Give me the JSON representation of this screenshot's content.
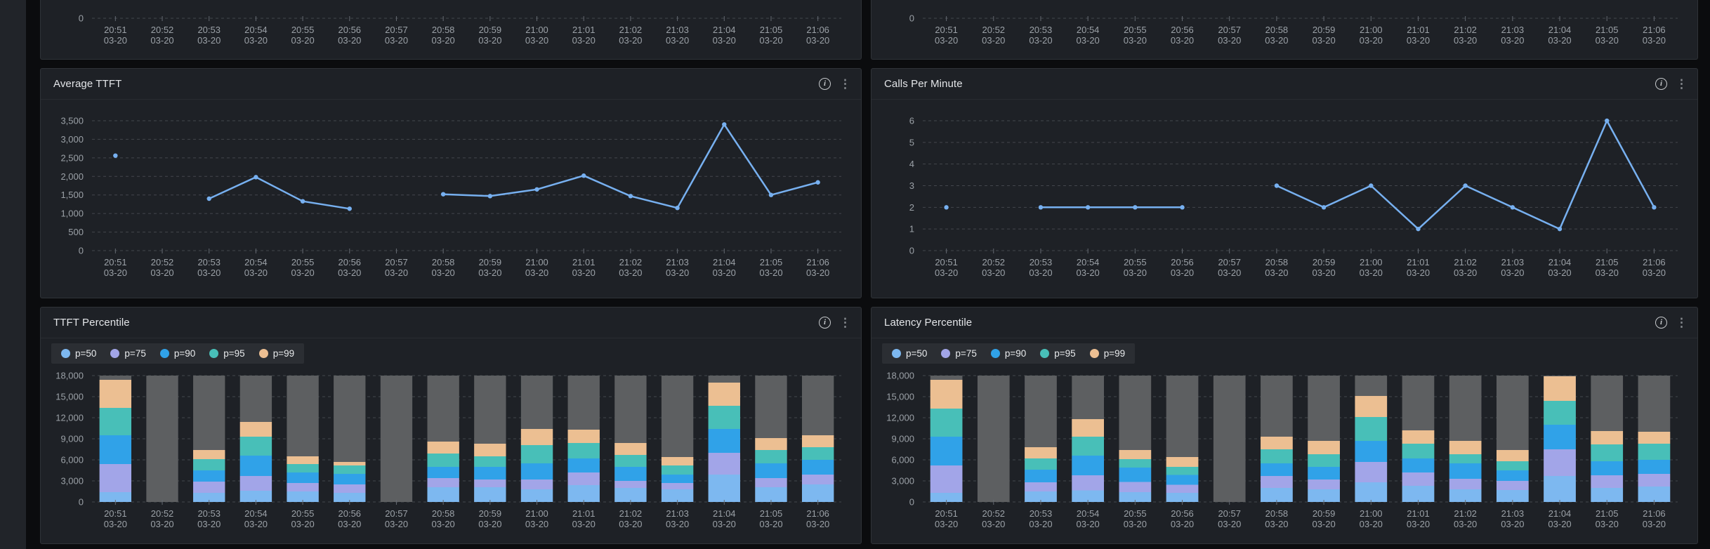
{
  "colors": {
    "page_bg": "#0b0c0e",
    "panel_bg": "#1e2126",
    "panel_border": "#2f3338",
    "gridline": "#43464c",
    "axis_text": "#9ba1a7",
    "title_text": "#e3e5e8",
    "line_series": "#77b0f0",
    "bar_backdrop": "#5d5f61",
    "p50": "#7db8f0",
    "p75": "#a2a5e8",
    "p90": "#30a2e8",
    "p95": "#48bfb8",
    "p99": "#ecbf92"
  },
  "panels": [
    {
      "title": ""
    },
    {
      "title": ""
    },
    {
      "title": "Average TTFT"
    },
    {
      "title": "Calls Per Minute"
    },
    {
      "title": "TTFT Percentile"
    },
    {
      "title": "Latency Percentile"
    }
  ],
  "header_icons": {
    "info": "i",
    "menu": "⋮"
  },
  "chart_data": [
    {
      "type": "line",
      "axis_only": true,
      "title": "",
      "x": [
        "20:51",
        "20:52",
        "20:53",
        "20:54",
        "20:55",
        "20:56",
        "20:57",
        "20:58",
        "20:59",
        "21:00",
        "21:01",
        "21:02",
        "21:03",
        "21:04",
        "21:05",
        "21:06"
      ],
      "x_date": "03-20",
      "ylim": [
        0,
        1
      ],
      "yticks": [
        0
      ],
      "ytick_labels": [
        "0"
      ],
      "series": [],
      "grid": true,
      "note_layout": "panel clipped at top of viewport; only zero line and x axis visible"
    },
    {
      "type": "line",
      "axis_only": true,
      "title": "",
      "x": [
        "20:51",
        "20:52",
        "20:53",
        "20:54",
        "20:55",
        "20:56",
        "20:57",
        "20:58",
        "20:59",
        "21:00",
        "21:01",
        "21:02",
        "21:03",
        "21:04",
        "21:05",
        "21:06"
      ],
      "x_date": "03-20",
      "ylim": [
        0,
        1
      ],
      "yticks": [
        0
      ],
      "ytick_labels": [
        "0"
      ],
      "series": [],
      "grid": true,
      "note_layout": "panel clipped at top of viewport; only zero line and x axis visible"
    },
    {
      "type": "line",
      "title": "Average TTFT",
      "x": [
        "20:51",
        "20:52",
        "20:53",
        "20:54",
        "20:55",
        "20:56",
        "20:57",
        "20:58",
        "20:59",
        "21:00",
        "21:01",
        "21:02",
        "21:03",
        "21:04",
        "21:05",
        "21:06"
      ],
      "x_date": "03-20",
      "ylim": [
        0,
        3500
      ],
      "yticks": [
        0,
        500,
        1000,
        1500,
        2000,
        2500,
        3000,
        3500
      ],
      "ytick_labels": [
        "0",
        "500",
        "1,000",
        "1,500",
        "2,000",
        "2,500",
        "3,000",
        "3,500"
      ],
      "line_color": "#77b0f0",
      "values": [
        2560,
        null,
        1400,
        1980,
        1330,
        1130,
        null,
        1520,
        1470,
        1650,
        2020,
        1470,
        1150,
        3400,
        1500,
        1840
      ],
      "grid": true,
      "legend_position": "none"
    },
    {
      "type": "line",
      "title": "Calls Per Minute",
      "x": [
        "20:51",
        "20:52",
        "20:53",
        "20:54",
        "20:55",
        "20:56",
        "20:57",
        "20:58",
        "20:59",
        "21:00",
        "21:01",
        "21:02",
        "21:03",
        "21:04",
        "21:05",
        "21:06"
      ],
      "x_date": "03-20",
      "ylim": [
        0,
        6
      ],
      "yticks": [
        0,
        1,
        2,
        3,
        4,
        5,
        6
      ],
      "ytick_labels": [
        "0",
        "1",
        "2",
        "3",
        "4",
        "5",
        "6"
      ],
      "line_color": "#77b0f0",
      "values": [
        2,
        null,
        2,
        2,
        2,
        2,
        null,
        3,
        2,
        3,
        1,
        3,
        2,
        1,
        6,
        2
      ],
      "grid": true,
      "legend_position": "none"
    },
    {
      "type": "stacked_bar",
      "title": "TTFT Percentile",
      "x": [
        "20:51",
        "20:52",
        "20:53",
        "20:54",
        "20:55",
        "20:56",
        "20:57",
        "20:58",
        "20:59",
        "21:00",
        "21:01",
        "21:02",
        "21:03",
        "21:04",
        "21:05",
        "21:06"
      ],
      "x_date": "03-20",
      "ylim": [
        0,
        18000
      ],
      "yticks": [
        0,
        3000,
        6000,
        9000,
        12000,
        15000,
        18000
      ],
      "ytick_labels": [
        "0",
        "3,000",
        "6,000",
        "9,000",
        "12,000",
        "15,000",
        "18,000"
      ],
      "backdrop_max": 18000,
      "backdrop_color": "#5d5f61",
      "stack_mode": "values_are_cumulative_tops",
      "legend_position": "top-left",
      "legend": [
        {
          "label": "p=50",
          "color": "#7db8f0"
        },
        {
          "label": "p=75",
          "color": "#a2a5e8"
        },
        {
          "label": "p=90",
          "color": "#30a2e8"
        },
        {
          "label": "p=95",
          "color": "#48bfb8"
        },
        {
          "label": "p=99",
          "color": "#ecbf92"
        }
      ],
      "series": [
        {
          "name": "p=50",
          "color": "#7db8f0",
          "values": [
            1400,
            null,
            1300,
            1600,
            1500,
            1300,
            null,
            2100,
            2100,
            1800,
            2400,
            2000,
            1800,
            3900,
            2100,
            2500
          ]
        },
        {
          "name": "p=75",
          "color": "#a2a5e8",
          "values": [
            5400,
            null,
            2900,
            3700,
            2700,
            2500,
            null,
            3400,
            3200,
            3200,
            4200,
            3000,
            2700,
            7000,
            3400,
            3900
          ]
        },
        {
          "name": "p=90",
          "color": "#30a2e8",
          "values": [
            9500,
            null,
            4500,
            6600,
            4200,
            4000,
            null,
            5000,
            5000,
            5500,
            6200,
            5000,
            3900,
            10400,
            5500,
            6000
          ]
        },
        {
          "name": "p=95",
          "color": "#48bfb8",
          "values": [
            13400,
            null,
            6100,
            9300,
            5400,
            5200,
            null,
            6900,
            6500,
            8100,
            8400,
            6700,
            5200,
            13700,
            7400,
            7800
          ]
        },
        {
          "name": "p=99",
          "color": "#ecbf92",
          "values": [
            17400,
            null,
            7400,
            11400,
            6500,
            5700,
            null,
            8600,
            8300,
            10400,
            10300,
            8400,
            6400,
            17000,
            9100,
            9500
          ]
        }
      ],
      "grid": true
    },
    {
      "type": "stacked_bar",
      "title": "Latency Percentile",
      "x": [
        "20:51",
        "20:52",
        "20:53",
        "20:54",
        "20:55",
        "20:56",
        "20:57",
        "20:58",
        "20:59",
        "21:00",
        "21:01",
        "21:02",
        "21:03",
        "21:04",
        "21:05",
        "21:06"
      ],
      "x_date": "03-20",
      "ylim": [
        0,
        18000
      ],
      "yticks": [
        0,
        3000,
        6000,
        9000,
        12000,
        15000,
        18000
      ],
      "ytick_labels": [
        "0",
        "3,000",
        "6,000",
        "9,000",
        "12,000",
        "15,000",
        "18,000"
      ],
      "backdrop_max": 18000,
      "backdrop_color": "#5d5f61",
      "stack_mode": "values_are_cumulative_tops",
      "legend_position": "top-left",
      "legend": [
        {
          "label": "p=50",
          "color": "#7db8f0"
        },
        {
          "label": "p=75",
          "color": "#a2a5e8"
        },
        {
          "label": "p=90",
          "color": "#30a2e8"
        },
        {
          "label": "p=95",
          "color": "#48bfb8"
        },
        {
          "label": "p=99",
          "color": "#ecbf92"
        }
      ],
      "series": [
        {
          "name": "p=50",
          "color": "#7db8f0",
          "values": [
            1300,
            null,
            1500,
            1650,
            1400,
            1300,
            null,
            2000,
            1800,
            2800,
            2300,
            1800,
            1700,
            3700,
            2000,
            2200
          ]
        },
        {
          "name": "p=75",
          "color": "#a2a5e8",
          "values": [
            5200,
            null,
            2800,
            3800,
            2850,
            2450,
            null,
            3700,
            3200,
            5700,
            4200,
            3300,
            3000,
            7500,
            3800,
            4000
          ]
        },
        {
          "name": "p=90",
          "color": "#30a2e8",
          "values": [
            9300,
            null,
            4600,
            6600,
            4900,
            3850,
            null,
            5500,
            5000,
            8700,
            6200,
            5500,
            4500,
            11000,
            5800,
            6000
          ]
        },
        {
          "name": "p=95",
          "color": "#48bfb8",
          "values": [
            13300,
            null,
            6200,
            9300,
            6100,
            5000,
            null,
            7500,
            6800,
            12100,
            8300,
            6800,
            5800,
            14400,
            8200,
            8300
          ]
        },
        {
          "name": "p=99",
          "color": "#ecbf92",
          "values": [
            17400,
            null,
            7800,
            11800,
            7400,
            6400,
            null,
            9300,
            8700,
            15100,
            10200,
            8700,
            7400,
            17900,
            10100,
            10000
          ]
        }
      ],
      "grid": true
    }
  ]
}
